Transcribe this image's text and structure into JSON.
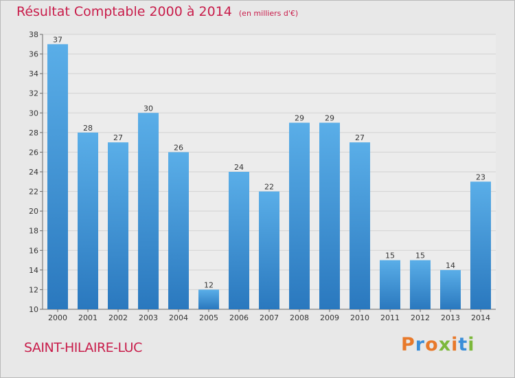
{
  "title": "Résultat Comptable 2000 à 2014",
  "subtitle": "(en milliers d'€)",
  "commune": "SAINT-HILAIRE-LUC",
  "logo": {
    "text": "Proxiti",
    "colors": [
      "#e8792a",
      "#3b8ed8",
      "#e8792a",
      "#7cb83b",
      "#e8792a",
      "#3b8ed8",
      "#7cb83b"
    ]
  },
  "chart_data": {
    "type": "bar",
    "categories": [
      "2000",
      "2001",
      "2002",
      "2003",
      "2004",
      "2005",
      "2006",
      "2007",
      "2008",
      "2009",
      "2010",
      "2011",
      "2012",
      "2013",
      "2014"
    ],
    "values": [
      37,
      28,
      27,
      30,
      26,
      12,
      24,
      22,
      29,
      29,
      27,
      15,
      15,
      14,
      23
    ],
    "ylim": [
      10,
      38
    ],
    "yticks": [
      10,
      12,
      14,
      16,
      18,
      20,
      22,
      24,
      26,
      28,
      30,
      32,
      34,
      36,
      38
    ],
    "grid": true,
    "bar_color_top": "#5aaee8",
    "bar_color_bottom": "#2a78be"
  }
}
